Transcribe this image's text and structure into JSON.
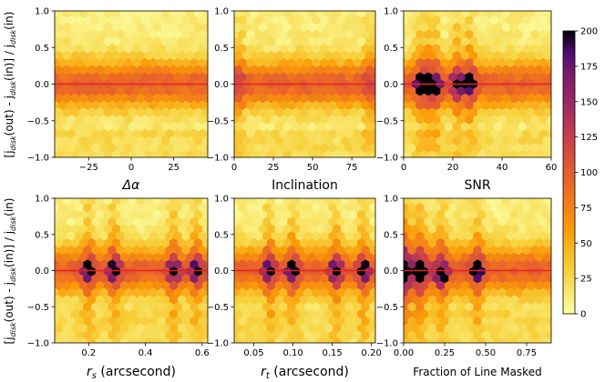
{
  "chart_data": {
    "type": "heatmap",
    "description": "Six hexbin density panels of fractional error in disk j vs. parameters",
    "ylabel": "[j_disk(out) - j_disk(in)] / j_disk(in)",
    "ylabel_parts": {
      "open": "[j",
      "sub": "disk",
      "mid1": "(out) - j",
      "mid2": "(in)] / j",
      "end": "(in)"
    },
    "ylim": [
      -1.0,
      1.0
    ],
    "ytick_values": [
      -1.0,
      -0.5,
      0.0,
      0.5,
      1.0
    ],
    "ytick_labels": [
      "−1.0",
      "−0.5",
      "0.0",
      "0.5",
      "1.0"
    ],
    "reference_line_y": 0.0,
    "reference_line_color": "#e8221e",
    "colorbar": {
      "range": [
        0,
        200
      ],
      "tick_values": [
        0,
        25,
        50,
        75,
        100,
        125,
        150,
        175,
        200
      ],
      "tick_labels": [
        "0",
        "25",
        "50",
        "75",
        "100",
        "125",
        "150",
        "175",
        "200"
      ],
      "colormap": "inferno_r"
    },
    "panels": [
      {
        "id": "delta-alpha",
        "xlabel": "Δα",
        "xlabel_style": "math",
        "xlim": [
          -45,
          45
        ],
        "xtick_values": [
          -25,
          0,
          25
        ],
        "xtick_labels": [
          "−25",
          "0",
          "25"
        ],
        "density": "uniform_band",
        "hotspots": []
      },
      {
        "id": "inclination",
        "xlabel": "Inclination",
        "xlim": [
          0,
          90
        ],
        "xtick_values": [
          0,
          25,
          50,
          75
        ],
        "xtick_labels": [
          "0",
          "25",
          "50",
          "75"
        ],
        "density": "uniform_band_wide_edges",
        "hotspots": []
      },
      {
        "id": "snr",
        "xlabel": "SNR",
        "xlim": [
          0,
          60
        ],
        "xtick_values": [
          0,
          20,
          40,
          60
        ],
        "xtick_labels": [
          "0",
          "20",
          "40",
          "60"
        ],
        "density": "columns",
        "hotspots": [
          [
            7,
            0.0
          ],
          [
            10,
            0.0
          ],
          [
            13,
            -0.05
          ],
          [
            22,
            0.0
          ],
          [
            27,
            0.0
          ]
        ]
      },
      {
        "id": "r-s",
        "xlabel_math": "r",
        "xlabel_sub": "s",
        "xlabel_unit": " (arcsecond)",
        "xlim": [
          0.08,
          0.62
        ],
        "xtick_values": [
          0.2,
          0.4,
          0.6
        ],
        "xtick_labels": [
          "0.2",
          "0.4",
          "0.6"
        ],
        "density": "columns",
        "hotspots": [
          [
            0.2,
            0.0
          ],
          [
            0.29,
            0.0
          ],
          [
            0.5,
            0.0
          ],
          [
            0.58,
            0.0
          ]
        ]
      },
      {
        "id": "r-t",
        "xlabel_math": "r",
        "xlabel_sub": "t",
        "xlabel_unit": " (arcsecond)",
        "xlim": [
          0.025,
          0.205
        ],
        "xtick_values": [
          0.05,
          0.1,
          0.15,
          0.2
        ],
        "xtick_labels": [
          "0.05",
          "0.10",
          "0.15",
          "0.20"
        ],
        "density": "columns",
        "hotspots": [
          [
            0.07,
            0.0
          ],
          [
            0.1,
            0.0
          ],
          [
            0.155,
            0.0
          ],
          [
            0.19,
            0.0
          ]
        ]
      },
      {
        "id": "masked",
        "xlabel": "Fraction of Line Masked",
        "xlim": [
          0.0,
          0.9
        ],
        "xtick_values": [
          0.0,
          0.25,
          0.5,
          0.75
        ],
        "xtick_labels": [
          "0.00",
          "0.25",
          "0.50",
          "0.75"
        ],
        "density": "columns_left_heavy",
        "hotspots": [
          [
            0.0,
            0.0
          ],
          [
            0.1,
            0.0
          ],
          [
            0.23,
            -0.05
          ],
          [
            0.45,
            0.0
          ]
        ]
      }
    ]
  }
}
